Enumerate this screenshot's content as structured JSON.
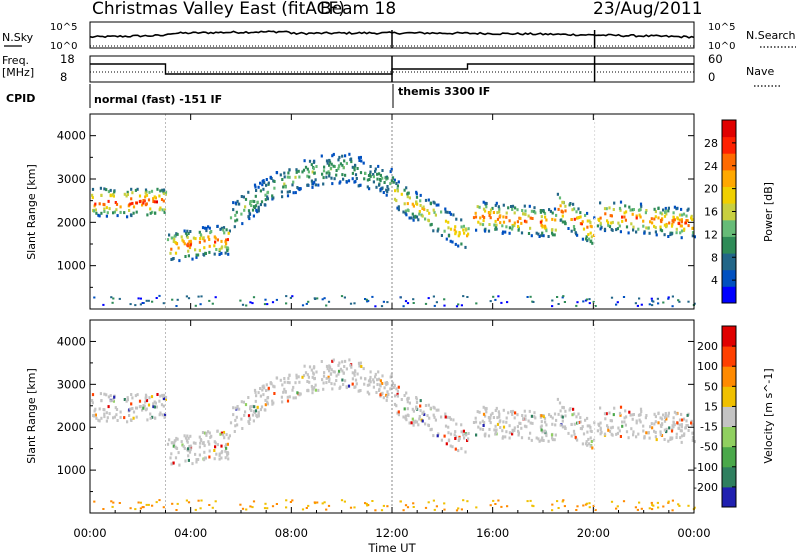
{
  "header": {
    "station": "Christmas Valley East (fitACF)",
    "beam": "Beam 18",
    "date": "23/Aug/2011"
  },
  "nsky_panel": {
    "left_label": "N.Sky",
    "right_label": "N.Search",
    "ticks": [
      "10^5",
      "10^0"
    ]
  },
  "freq_panel": {
    "left_label_1": "Freq.",
    "left_label_2": "[MHz]",
    "left_ticks": [
      "18",
      "8"
    ],
    "right_label": "Nave",
    "right_ticks": [
      "60",
      "0"
    ]
  },
  "cpid": {
    "label": "CPID",
    "mode_1": "normal (fast) -151 IF",
    "mode_2": "themis 3300 IF"
  },
  "x_axis": {
    "label": "Time UT",
    "ticks": [
      "00:00",
      "04:00",
      "08:00",
      "12:00",
      "16:00",
      "20:00",
      "00:00"
    ]
  },
  "chart_data": [
    {
      "type": "heatmap",
      "name": "power",
      "ylabel": "Slant Range [km]",
      "ylim": [
        0,
        4500
      ],
      "xlim_hours": [
        0,
        24
      ],
      "y_ticks": [
        "1000",
        "2000",
        "3000",
        "4000"
      ],
      "colorbar": {
        "label": "Power [dB]",
        "ticks": [
          "28",
          "24",
          "20",
          "16",
          "12",
          "8",
          "4"
        ],
        "colors": [
          "#0000ff",
          "#0050c0",
          "#226688",
          "#2e8b57",
          "#66bb77",
          "#c8d040",
          "#f0d000",
          "#ffa800",
          "#ff6a00",
          "#ff2000",
          "#e00000"
        ]
      },
      "echo_bands": [
        {
          "t_start": 0,
          "t_end": 3,
          "range_start": 2500,
          "range_end": 2500,
          "strength": 24
        },
        {
          "t_start": 3,
          "t_end": 5.5,
          "range_start": 1450,
          "range_end": 1650,
          "strength": 22
        },
        {
          "t_start": 5.5,
          "t_end": 10.2,
          "range_start": 2100,
          "range_end": 3300,
          "strength": 10
        },
        {
          "t_start": 10.2,
          "t_end": 12,
          "range_start": 3300,
          "range_end": 2900,
          "strength": 8
        },
        {
          "t_start": 12,
          "t_end": 15,
          "range_start": 2700,
          "range_end": 1700,
          "strength": 18
        },
        {
          "t_start": 15.2,
          "t_end": 18.5,
          "range_start": 2200,
          "range_end": 2000,
          "strength": 22
        },
        {
          "t_start": 18.5,
          "t_end": 20,
          "range_start": 2400,
          "range_end": 1800,
          "strength": 22
        },
        {
          "t_start": 20.1,
          "t_end": 24,
          "range_start": 2200,
          "range_end": 2000,
          "strength": 22
        }
      ]
    },
    {
      "type": "heatmap",
      "name": "velocity",
      "ylabel": "Slant Range [km]",
      "ylim": [
        0,
        4500
      ],
      "xlim_hours": [
        0,
        24
      ],
      "y_ticks": [
        "1000",
        "2000",
        "3000",
        "4000"
      ],
      "colorbar": {
        "label": "Velocity [m s^-1]",
        "ticks": [
          "200",
          "100",
          "50",
          "15",
          "-15",
          "-50",
          "-100",
          "-200"
        ],
        "colors": [
          "#2020b0",
          "#2f7f5f",
          "#4aa84a",
          "#90d060",
          "#c4c4c4",
          "#f0c000",
          "#ff8a00",
          "#ff4000",
          "#e00000"
        ]
      }
    }
  ]
}
